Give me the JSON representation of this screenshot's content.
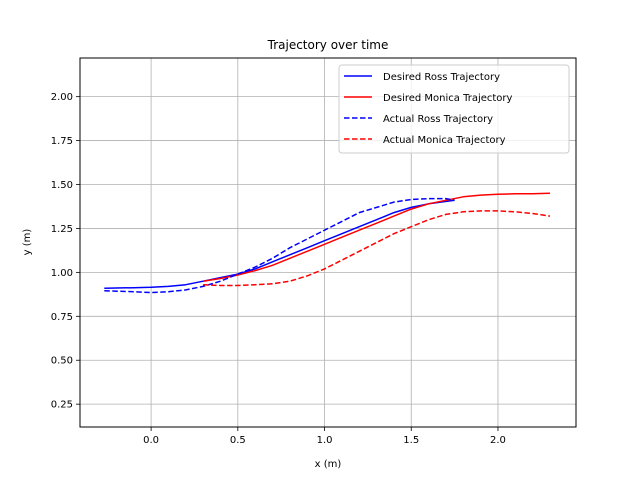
{
  "chart_data": {
    "type": "line",
    "title": "Trajectory over time",
    "xlabel": "x (m)",
    "ylabel": "y (m)",
    "xlim": [
      -0.41,
      2.45
    ],
    "ylim": [
      0.12,
      2.22
    ],
    "xticks": [
      0.0,
      0.5,
      1.0,
      1.5,
      2.0
    ],
    "xtick_labels": [
      "0.0",
      "0.5",
      "1.0",
      "1.5",
      "2.0"
    ],
    "yticks": [
      0.25,
      0.5,
      0.75,
      1.0,
      1.25,
      1.5,
      1.75,
      2.0
    ],
    "ytick_labels": [
      "0.25",
      "0.50",
      "0.75",
      "1.00",
      "1.25",
      "1.50",
      "1.75",
      "2.00"
    ],
    "grid": true,
    "legend_position": "top-right",
    "series": [
      {
        "name": "Desired Ross Trajectory",
        "color": "#0000ff",
        "linestyle": "solid",
        "x": [
          -0.27,
          -0.1,
          0.0,
          0.1,
          0.2,
          0.3,
          0.4,
          0.5,
          0.6,
          0.7,
          0.8,
          0.9,
          1.0,
          1.1,
          1.2,
          1.3,
          1.4,
          1.5,
          1.6,
          1.75
        ],
        "y": [
          0.91,
          0.913,
          0.915,
          0.92,
          0.93,
          0.95,
          0.97,
          0.99,
          1.02,
          1.06,
          1.1,
          1.14,
          1.18,
          1.22,
          1.26,
          1.3,
          1.34,
          1.37,
          1.39,
          1.41
        ]
      },
      {
        "name": "Desired Monica Trajectory",
        "color": "#ff0000",
        "linestyle": "solid",
        "x": [
          0.3,
          0.4,
          0.5,
          0.6,
          0.7,
          0.8,
          0.9,
          1.0,
          1.1,
          1.2,
          1.3,
          1.4,
          1.5,
          1.6,
          1.7,
          1.8,
          1.9,
          2.0,
          2.1,
          2.2,
          2.3
        ],
        "y": [
          0.95,
          0.965,
          0.985,
          1.01,
          1.04,
          1.08,
          1.12,
          1.16,
          1.2,
          1.24,
          1.28,
          1.32,
          1.36,
          1.39,
          1.41,
          1.43,
          1.44,
          1.445,
          1.447,
          1.448,
          1.45
        ]
      },
      {
        "name": "Actual Ross Trajectory",
        "color": "#0000ff",
        "linestyle": "dashed",
        "x": [
          -0.27,
          -0.1,
          0.0,
          0.1,
          0.2,
          0.3,
          0.4,
          0.5,
          0.6,
          0.7,
          0.8,
          0.9,
          1.0,
          1.1,
          1.2,
          1.3,
          1.4,
          1.5,
          1.6,
          1.7,
          1.75
        ],
        "y": [
          0.895,
          0.89,
          0.885,
          0.89,
          0.9,
          0.92,
          0.95,
          0.99,
          1.03,
          1.08,
          1.14,
          1.19,
          1.24,
          1.29,
          1.34,
          1.37,
          1.4,
          1.415,
          1.42,
          1.42,
          1.41
        ]
      },
      {
        "name": "Actual Monica Trajectory",
        "color": "#ff0000",
        "linestyle": "dashed",
        "x": [
          0.3,
          0.4,
          0.5,
          0.6,
          0.7,
          0.8,
          0.9,
          1.0,
          1.1,
          1.2,
          1.3,
          1.4,
          1.5,
          1.6,
          1.7,
          1.8,
          1.9,
          2.0,
          2.1,
          2.2,
          2.3
        ],
        "y": [
          0.93,
          0.925,
          0.925,
          0.93,
          0.935,
          0.95,
          0.98,
          1.02,
          1.07,
          1.12,
          1.17,
          1.22,
          1.26,
          1.3,
          1.33,
          1.345,
          1.35,
          1.35,
          1.345,
          1.335,
          1.32
        ]
      }
    ]
  }
}
